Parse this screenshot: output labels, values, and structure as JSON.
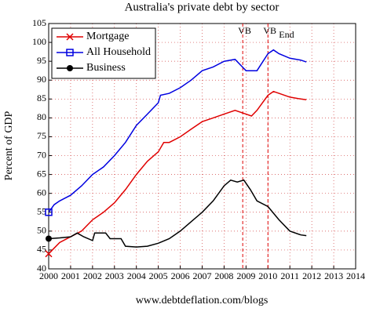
{
  "chart_data": {
    "type": "line",
    "title": "Australia's private debt by sector",
    "y_label": "Percent of GDP",
    "x_label": "www.debtdeflation.com/blogs",
    "xlim": [
      2000,
      2014
    ],
    "ylim": [
      40,
      105
    ],
    "xticks": [
      2000,
      2001,
      2002,
      2003,
      2004,
      2005,
      2006,
      2007,
      2008,
      2009,
      2010,
      2011,
      2012,
      2013,
      2014
    ],
    "yticks": [
      40,
      45,
      50,
      55,
      60,
      65,
      70,
      75,
      80,
      85,
      90,
      95,
      100,
      105
    ],
    "grid": true,
    "legend": "upper left",
    "annotations": [
      {
        "text": "VB",
        "x": 2008.85,
        "color": "#e00000"
      },
      {
        "text": "VB",
        "sub": "End",
        "x": 2010,
        "color": "#e00000"
      }
    ],
    "series": [
      {
        "name": "Mortgage",
        "color": "#e00000",
        "marker": "x",
        "x": [
          2000,
          2000.5,
          2001,
          2001.5,
          2002,
          2002.5,
          2003,
          2003.5,
          2004,
          2004.5,
          2005,
          2005.25,
          2005.5,
          2006,
          2006.5,
          2007,
          2007.5,
          2008,
          2008.5,
          2009,
          2009.25,
          2009.5,
          2010,
          2010.25,
          2010.5,
          2011,
          2011.5,
          2011.75
        ],
        "values": [
          44,
          47,
          48.5,
          50,
          53,
          55,
          57.5,
          61,
          65,
          68.5,
          71,
          73.5,
          73.5,
          75,
          77,
          79,
          80,
          81,
          82,
          81,
          80.5,
          82,
          86,
          87,
          86.5,
          85.5,
          85,
          84.8
        ]
      },
      {
        "name": "All Household",
        "color": "#0000e0",
        "marker": "square",
        "x": [
          2000,
          2000.25,
          2000.5,
          2001,
          2001.5,
          2002,
          2002.5,
          2003,
          2003.5,
          2004,
          2004.5,
          2005,
          2005.1,
          2005.5,
          2006,
          2006.5,
          2007,
          2007.5,
          2008,
          2008.5,
          2008.75,
          2009,
          2009.5,
          2010,
          2010.25,
          2010.5,
          2011,
          2011.5,
          2011.75
        ],
        "values": [
          55,
          57,
          58,
          59.5,
          62,
          65,
          67,
          70,
          73.5,
          78,
          81,
          84,
          86,
          86.5,
          88,
          90,
          92.5,
          93.5,
          95,
          95.5,
          94,
          92.5,
          92.5,
          97,
          98,
          97,
          95.8,
          95.3,
          94.8
        ]
      },
      {
        "name": "Business",
        "color": "#000000",
        "marker": "circle",
        "x": [
          2000,
          2000.5,
          2001,
          2001.3,
          2001.6,
          2002,
          2002.1,
          2002.6,
          2002.8,
          2003.3,
          2003.5,
          2004,
          2004.5,
          2005,
          2005.5,
          2006,
          2006.5,
          2007,
          2007.5,
          2008,
          2008.3,
          2008.6,
          2008.9,
          2009.2,
          2009.5,
          2010,
          2010.5,
          2011,
          2011.5,
          2011.75
        ],
        "values": [
          48,
          48.2,
          48.5,
          49.5,
          48.5,
          47.5,
          49.5,
          49.5,
          48,
          48,
          46,
          45.8,
          46,
          46.8,
          48,
          50,
          52.5,
          55,
          58,
          62,
          63.5,
          63,
          63.5,
          61,
          58,
          56.5,
          53,
          50,
          49,
          48.8
        ]
      }
    ]
  }
}
